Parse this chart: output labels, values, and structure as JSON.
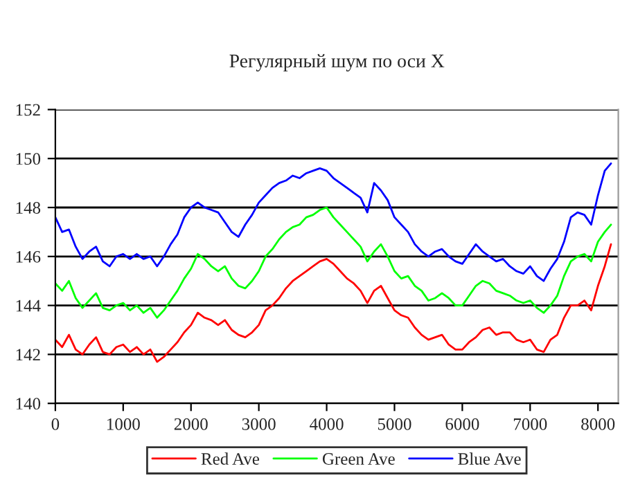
{
  "chart_data": {
    "type": "line",
    "title": "Регулярный шум по оси X",
    "x": [
      0,
      100,
      200,
      300,
      400,
      500,
      600,
      700,
      800,
      900,
      1000,
      1100,
      1200,
      1300,
      1400,
      1500,
      1600,
      1700,
      1800,
      1900,
      2000,
      2100,
      2200,
      2300,
      2400,
      2500,
      2600,
      2700,
      2800,
      2900,
      3000,
      3100,
      3200,
      3300,
      3400,
      3500,
      3600,
      3700,
      3800,
      3900,
      4000,
      4100,
      4200,
      4300,
      4400,
      4500,
      4600,
      4700,
      4800,
      4900,
      5000,
      5100,
      5200,
      5300,
      5400,
      5500,
      5600,
      5700,
      5800,
      5900,
      6000,
      6100,
      6200,
      6300,
      6400,
      6500,
      6600,
      6700,
      6800,
      6900,
      7000,
      7100,
      7200,
      7300,
      7400,
      7500,
      7600,
      7700,
      7800,
      7900,
      8000,
      8100,
      8192
    ],
    "series": [
      {
        "name": "Red Ave",
        "color": "#ff0000",
        "values": [
          142.6,
          142.3,
          142.8,
          142.2,
          142.0,
          142.4,
          142.7,
          142.1,
          142.0,
          142.3,
          142.4,
          142.1,
          142.3,
          142.0,
          142.2,
          141.7,
          141.9,
          142.2,
          142.5,
          142.9,
          143.2,
          143.7,
          143.5,
          143.4,
          143.2,
          143.4,
          143.0,
          142.8,
          142.7,
          142.9,
          143.2,
          143.8,
          144.0,
          144.3,
          144.7,
          145.0,
          145.2,
          145.4,
          145.6,
          145.8,
          145.9,
          145.7,
          145.4,
          145.1,
          144.9,
          144.6,
          144.1,
          144.6,
          144.8,
          144.3,
          143.8,
          143.6,
          143.5,
          143.1,
          142.8,
          142.6,
          142.7,
          142.8,
          142.4,
          142.2,
          142.2,
          142.5,
          142.7,
          143.0,
          143.1,
          142.8,
          142.9,
          142.9,
          142.6,
          142.5,
          142.6,
          142.2,
          142.1,
          142.6,
          142.8,
          143.5,
          144.0,
          144.0,
          144.2,
          143.8,
          144.8,
          145.6,
          146.5
        ]
      },
      {
        "name": "Green Ave",
        "color": "#00ff00",
        "values": [
          144.9,
          144.6,
          145.0,
          144.3,
          143.9,
          144.2,
          144.5,
          143.9,
          143.8,
          144.0,
          144.1,
          143.8,
          144.0,
          143.7,
          143.9,
          143.5,
          143.8,
          144.2,
          144.6,
          145.1,
          145.5,
          146.1,
          145.9,
          145.6,
          145.4,
          145.6,
          145.1,
          144.8,
          144.7,
          145.0,
          145.4,
          146.0,
          146.3,
          146.7,
          147.0,
          147.2,
          147.3,
          147.6,
          147.7,
          147.9,
          148.0,
          147.6,
          147.3,
          147.0,
          146.7,
          146.4,
          145.8,
          146.2,
          146.5,
          146.0,
          145.4,
          145.1,
          145.2,
          144.8,
          144.6,
          144.2,
          144.3,
          144.5,
          144.3,
          144.0,
          144.0,
          144.4,
          144.8,
          145.0,
          144.9,
          144.6,
          144.5,
          144.4,
          144.2,
          144.1,
          144.2,
          143.9,
          143.7,
          144.0,
          144.4,
          145.2,
          145.8,
          146.0,
          146.1,
          145.8,
          146.6,
          147.0,
          147.3
        ]
      },
      {
        "name": "Blue Ave",
        "color": "#0000ff",
        "values": [
          147.6,
          147.0,
          147.1,
          146.4,
          145.9,
          146.2,
          146.4,
          145.8,
          145.6,
          146.0,
          146.1,
          145.9,
          146.1,
          145.9,
          146.0,
          145.6,
          146.0,
          146.5,
          146.9,
          147.6,
          148.0,
          148.2,
          148.0,
          147.9,
          147.8,
          147.4,
          147.0,
          146.8,
          147.3,
          147.7,
          148.2,
          148.5,
          148.8,
          149.0,
          149.1,
          149.3,
          149.2,
          149.4,
          149.5,
          149.6,
          149.5,
          149.2,
          149.0,
          148.8,
          148.6,
          148.4,
          147.8,
          149.0,
          148.7,
          148.3,
          147.6,
          147.3,
          147.0,
          146.5,
          146.2,
          146.0,
          146.2,
          146.3,
          146.0,
          145.8,
          145.7,
          146.1,
          146.5,
          146.2,
          146.0,
          145.8,
          145.9,
          145.6,
          145.4,
          145.3,
          145.6,
          145.2,
          145.0,
          145.5,
          145.9,
          146.6,
          147.6,
          147.8,
          147.7,
          147.3,
          148.5,
          149.5,
          149.8
        ]
      }
    ],
    "xlim": [
      0,
      8300
    ],
    "xticks": [
      0,
      1000,
      2000,
      3000,
      4000,
      5000,
      6000,
      7000,
      8000
    ],
    "ylim": [
      140,
      152
    ],
    "yticks": [
      140,
      142,
      144,
      146,
      148,
      150,
      152
    ],
    "grid": "y",
    "legend": "bottom",
    "marker": "none",
    "line_style": "solid"
  }
}
